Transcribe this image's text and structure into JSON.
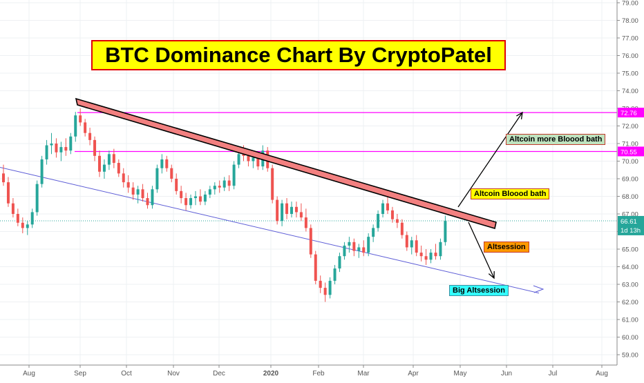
{
  "chart_data": {
    "type": "candlestick",
    "title": "BTC Dominance Chart By CryptoPatel",
    "x_ticks": [
      "Aug",
      "Sep",
      "Oct",
      "Nov",
      "Dec",
      "2020",
      "Feb",
      "Mar",
      "Apr",
      "May",
      "Jun",
      "Jul",
      "Aug"
    ],
    "y_ticks": [
      "79.00",
      "78.00",
      "77.00",
      "76.00",
      "75.00",
      "74.00",
      "73.00",
      "72.00",
      "71.00",
      "70.00",
      "69.00",
      "68.00",
      "67.00",
      "66.00",
      "65.00",
      "64.00",
      "63.00",
      "62.00",
      "61.00",
      "60.00",
      "59.00"
    ],
    "ylim": [
      58.6,
      79.2
    ],
    "colors": {
      "up": "#26a69a",
      "down": "#ef5350",
      "resistance": "#ff00ff",
      "trend_fill": "#f28080",
      "support": "#5c5cd6",
      "price_line": "#26a69a"
    },
    "horizontal_levels": [
      {
        "value": 72.76,
        "label": "72.76"
      },
      {
        "value": 70.55,
        "label": "70.55"
      }
    ],
    "last_price": {
      "value": 66.61,
      "label": "66.61",
      "countdown": "1d 13h"
    },
    "annotations": [
      {
        "text": "Altcoin more Bloood bath",
        "bg": "#bfe3bf"
      },
      {
        "text": "Altcoin Bloood bath",
        "bg": "#ffff00"
      },
      {
        "text": "Altsession",
        "bg": "#ff9900"
      },
      {
        "text": "Big Altsession",
        "bg": "#33ffff"
      }
    ],
    "candles": [
      [
        69.3,
        69.8,
        68.6,
        68.8
      ],
      [
        68.8,
        69.1,
        67.4,
        67.6
      ],
      [
        67.6,
        67.9,
        66.8,
        67.0
      ],
      [
        67.0,
        67.3,
        66.3,
        66.5
      ],
      [
        66.5,
        66.8,
        65.9,
        66.2
      ],
      [
        66.2,
        66.6,
        65.8,
        66.4
      ],
      [
        66.4,
        67.3,
        66.2,
        67.1
      ],
      [
        67.1,
        68.9,
        66.9,
        68.7
      ],
      [
        68.7,
        70.3,
        68.5,
        70.1
      ],
      [
        70.1,
        71.2,
        69.8,
        70.9
      ],
      [
        70.9,
        71.6,
        70.4,
        71.0
      ],
      [
        71.0,
        71.3,
        70.2,
        70.5
      ],
      [
        70.5,
        71.1,
        70.0,
        70.8
      ],
      [
        70.8,
        71.3,
        70.3,
        70.6
      ],
      [
        70.6,
        71.6,
        70.4,
        71.4
      ],
      [
        71.4,
        72.8,
        71.1,
        72.6
      ],
      [
        72.6,
        73.0,
        72.0,
        72.2
      ],
      [
        72.2,
        72.4,
        71.4,
        71.6
      ],
      [
        71.6,
        71.9,
        70.9,
        71.2
      ],
      [
        71.2,
        71.4,
        70.0,
        70.3
      ],
      [
        70.3,
        70.6,
        69.1,
        69.4
      ],
      [
        69.4,
        70.1,
        69.0,
        69.8
      ],
      [
        69.8,
        70.6,
        69.5,
        70.4
      ],
      [
        70.4,
        70.7,
        69.6,
        69.9
      ],
      [
        69.9,
        70.1,
        69.1,
        69.3
      ],
      [
        69.3,
        69.6,
        68.5,
        68.8
      ],
      [
        68.8,
        69.2,
        68.2,
        68.5
      ],
      [
        68.5,
        68.8,
        67.8,
        68.1
      ],
      [
        68.1,
        68.6,
        67.6,
        68.4
      ],
      [
        68.4,
        68.7,
        67.7,
        67.9
      ],
      [
        67.9,
        68.2,
        67.3,
        67.5
      ],
      [
        67.5,
        68.6,
        67.3,
        68.4
      ],
      [
        68.4,
        69.8,
        68.2,
        69.6
      ],
      [
        69.6,
        70.4,
        69.3,
        70.1
      ],
      [
        70.1,
        70.3,
        69.4,
        69.6
      ],
      [
        69.6,
        69.8,
        68.8,
        69.0
      ],
      [
        69.0,
        69.3,
        68.1,
        68.3
      ],
      [
        68.3,
        68.6,
        67.6,
        67.9
      ],
      [
        67.9,
        68.2,
        67.2,
        67.5
      ],
      [
        67.5,
        68.1,
        67.3,
        67.9
      ],
      [
        67.9,
        68.3,
        67.5,
        68.0
      ],
      [
        68.0,
        68.4,
        67.5,
        67.7
      ],
      [
        67.7,
        68.3,
        67.5,
        68.1
      ],
      [
        68.1,
        68.6,
        67.9,
        68.4
      ],
      [
        68.4,
        68.8,
        68.1,
        68.6
      ],
      [
        68.6,
        68.9,
        68.2,
        68.5
      ],
      [
        68.5,
        69.1,
        68.3,
        68.9
      ],
      [
        68.9,
        69.2,
        68.3,
        68.6
      ],
      [
        68.6,
        70.0,
        68.4,
        69.8
      ],
      [
        69.8,
        70.7,
        69.6,
        70.4
      ],
      [
        70.4,
        70.9,
        70.0,
        70.3
      ],
      [
        70.3,
        70.6,
        69.7,
        70.0
      ],
      [
        70.0,
        70.4,
        69.6,
        70.2
      ],
      [
        70.2,
        70.5,
        69.5,
        69.7
      ],
      [
        69.7,
        70.9,
        69.5,
        70.6
      ],
      [
        70.6,
        70.8,
        69.4,
        69.6
      ],
      [
        69.6,
        69.8,
        67.6,
        67.8
      ],
      [
        67.8,
        68.0,
        66.4,
        66.6
      ],
      [
        66.6,
        67.8,
        66.3,
        67.6
      ],
      [
        67.6,
        67.9,
        66.7,
        67.0
      ],
      [
        67.0,
        67.7,
        66.8,
        67.4
      ],
      [
        67.4,
        67.7,
        66.8,
        67.1
      ],
      [
        67.1,
        67.6,
        66.6,
        66.8
      ],
      [
        66.8,
        67.3,
        66.0,
        66.2
      ],
      [
        66.2,
        66.4,
        64.5,
        64.7
      ],
      [
        64.7,
        64.9,
        63.0,
        63.2
      ],
      [
        63.2,
        63.5,
        62.5,
        62.8
      ],
      [
        62.8,
        63.1,
        62.0,
        62.4
      ],
      [
        62.4,
        63.4,
        62.2,
        63.2
      ],
      [
        63.2,
        64.1,
        63.0,
        63.9
      ],
      [
        63.9,
        64.8,
        63.7,
        64.6
      ],
      [
        64.6,
        65.4,
        64.4,
        65.2
      ],
      [
        65.2,
        65.7,
        64.8,
        65.4
      ],
      [
        65.4,
        65.6,
        64.6,
        64.9
      ],
      [
        64.9,
        65.3,
        64.5,
        65.1
      ],
      [
        65.1,
        65.5,
        64.6,
        64.8
      ],
      [
        64.8,
        65.9,
        64.6,
        65.7
      ],
      [
        65.7,
        66.4,
        65.4,
        66.2
      ],
      [
        66.2,
        67.2,
        66.0,
        67.0
      ],
      [
        67.0,
        67.8,
        66.8,
        67.6
      ],
      [
        67.6,
        68.0,
        67.0,
        67.2
      ],
      [
        67.2,
        67.4,
        66.5,
        66.7
      ],
      [
        66.7,
        67.0,
        66.2,
        66.5
      ],
      [
        66.5,
        66.7,
        65.6,
        65.8
      ],
      [
        65.8,
        66.0,
        64.9,
        65.1
      ],
      [
        65.1,
        65.7,
        64.7,
        65.5
      ],
      [
        65.5,
        65.8,
        64.6,
        64.8
      ],
      [
        64.8,
        65.2,
        64.3,
        64.6
      ],
      [
        64.6,
        65.0,
        64.1,
        64.4
      ],
      [
        64.4,
        65.0,
        64.2,
        64.8
      ],
      [
        64.8,
        65.3,
        64.4,
        64.6
      ],
      [
        64.6,
        65.6,
        64.4,
        65.4
      ],
      [
        65.4,
        66.9,
        65.2,
        66.6
      ]
    ]
  }
}
